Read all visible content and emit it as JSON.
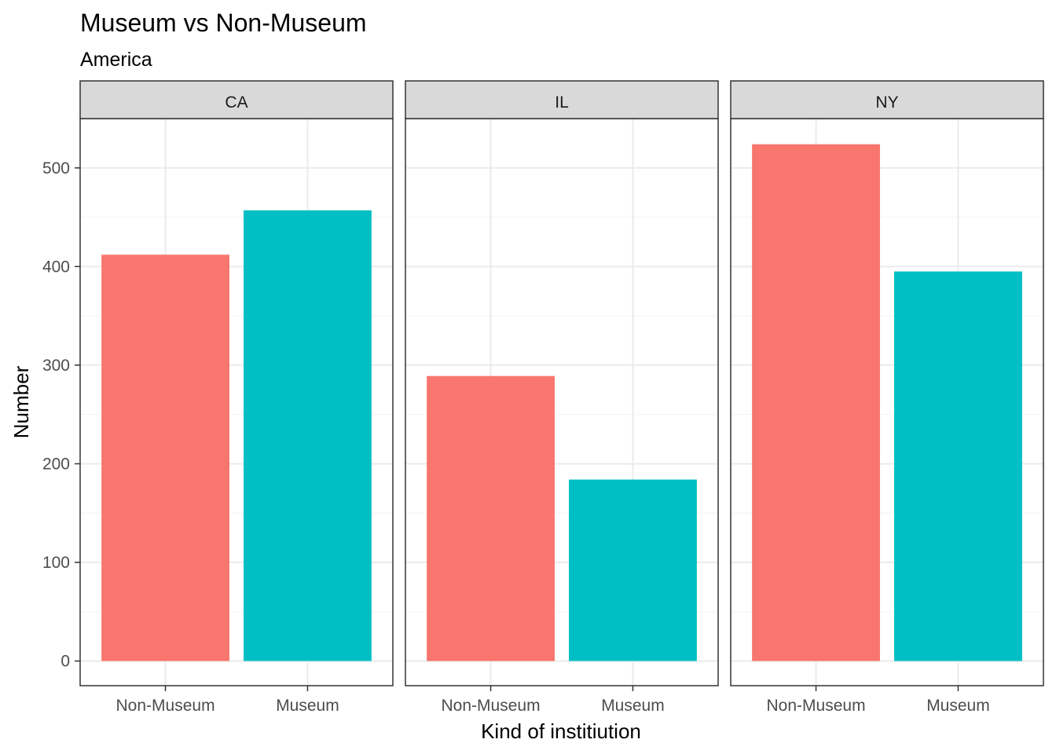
{
  "chart_data": {
    "type": "bar",
    "title": "Museum vs Non-Museum",
    "subtitle": "America",
    "xlabel": "Kind of institiution",
    "ylabel": "Number",
    "ylim": [
      -25,
      550
    ],
    "yticks": [
      0,
      100,
      200,
      300,
      400,
      500
    ],
    "yticks_labels": [
      "0",
      "100",
      "200",
      "300",
      "400",
      "500"
    ],
    "grid": true,
    "categories": [
      "Non-Museum",
      "Museum"
    ],
    "category_colors": [
      "#F8766D",
      "#00BFC4"
    ],
    "facets": [
      {
        "label": "CA",
        "values": [
          412,
          457
        ]
      },
      {
        "label": "IL",
        "values": [
          289,
          184
        ]
      },
      {
        "label": "NY",
        "values": [
          524,
          395
        ]
      }
    ]
  },
  "colors": {
    "strip_background": "#d9d9d9",
    "panel_border": "#333333",
    "grid_major": "#ebebeb",
    "grid_minor": "#f5f5f5"
  }
}
